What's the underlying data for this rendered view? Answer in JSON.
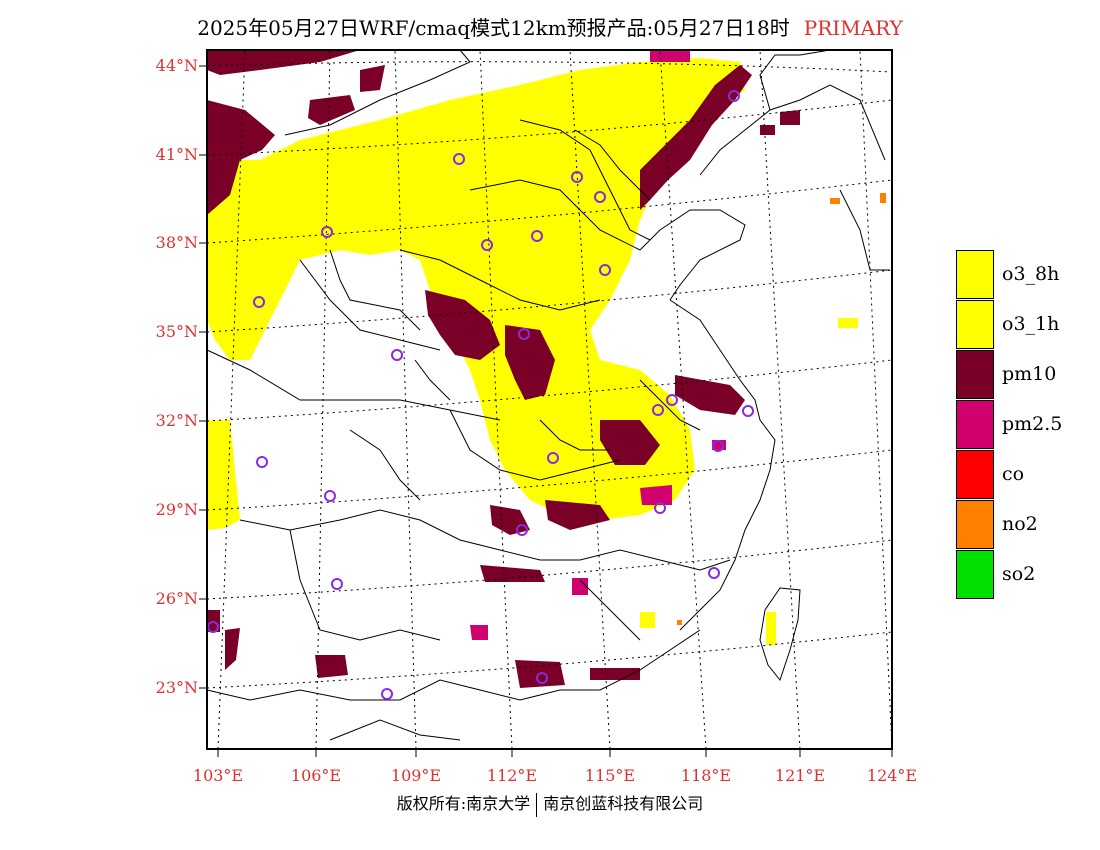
{
  "title": "2025年05月27日WRF/cmaq模式12km预报产品:05月27日18时",
  "title_tag": "PRIMARY",
  "lat_labels": [
    "44°N",
    "41°N",
    "38°N",
    "35°N",
    "32°N",
    "29°N",
    "26°N",
    "23°N"
  ],
  "lon_labels": [
    "103°E",
    "106°E",
    "109°E",
    "112°E",
    "115°E",
    "118°E",
    "121°E",
    "124°E"
  ],
  "legend": [
    {
      "label": "o3_8h",
      "color": "#ffff00"
    },
    {
      "label": "o3_1h",
      "color": "#ffff00"
    },
    {
      "label": "pm10",
      "color": "#7b0028"
    },
    {
      "label": "pm2.5",
      "color": "#d0006f"
    },
    {
      "label": "co",
      "color": "#ff0000"
    },
    {
      "label": "no2",
      "color": "#ff7f00"
    },
    {
      "label": "so2",
      "color": "#00e000"
    }
  ],
  "footer_left": "版权所有:南京大学",
  "footer_right": "南京创蓝科技有限公司",
  "colors": {
    "axis_label": "#e03030",
    "title_tag": "#e03030",
    "station_marker": "#8a2be2"
  }
}
